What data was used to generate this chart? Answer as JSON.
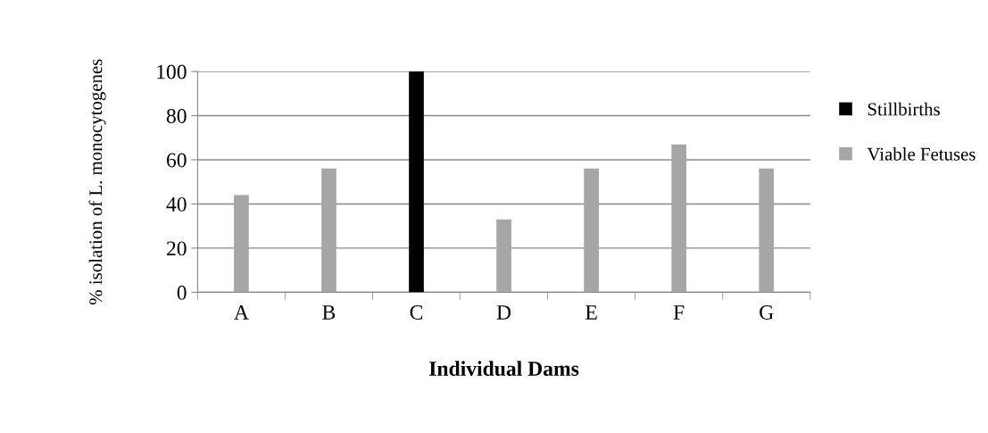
{
  "chart_data": {
    "type": "bar",
    "stacked": true,
    "xlabel": "Individual Dams",
    "ylabel": "% isolation of L. monocytogenes",
    "categories": [
      "A",
      "B",
      "C",
      "D",
      "E",
      "F",
      "G"
    ],
    "series": [
      {
        "name": "Stillbirths",
        "color": "#000000",
        "values": [
          0,
          0,
          100,
          0,
          0,
          0,
          0
        ]
      },
      {
        "name": "Viable Fetuses",
        "color": "#a6a6a6",
        "values": [
          44,
          56,
          0,
          33,
          56,
          67,
          56
        ]
      }
    ],
    "ylim": [
      0,
      100
    ],
    "yticks": [
      0,
      20,
      40,
      60,
      80,
      100
    ],
    "grid": "y",
    "legend": "right"
  }
}
